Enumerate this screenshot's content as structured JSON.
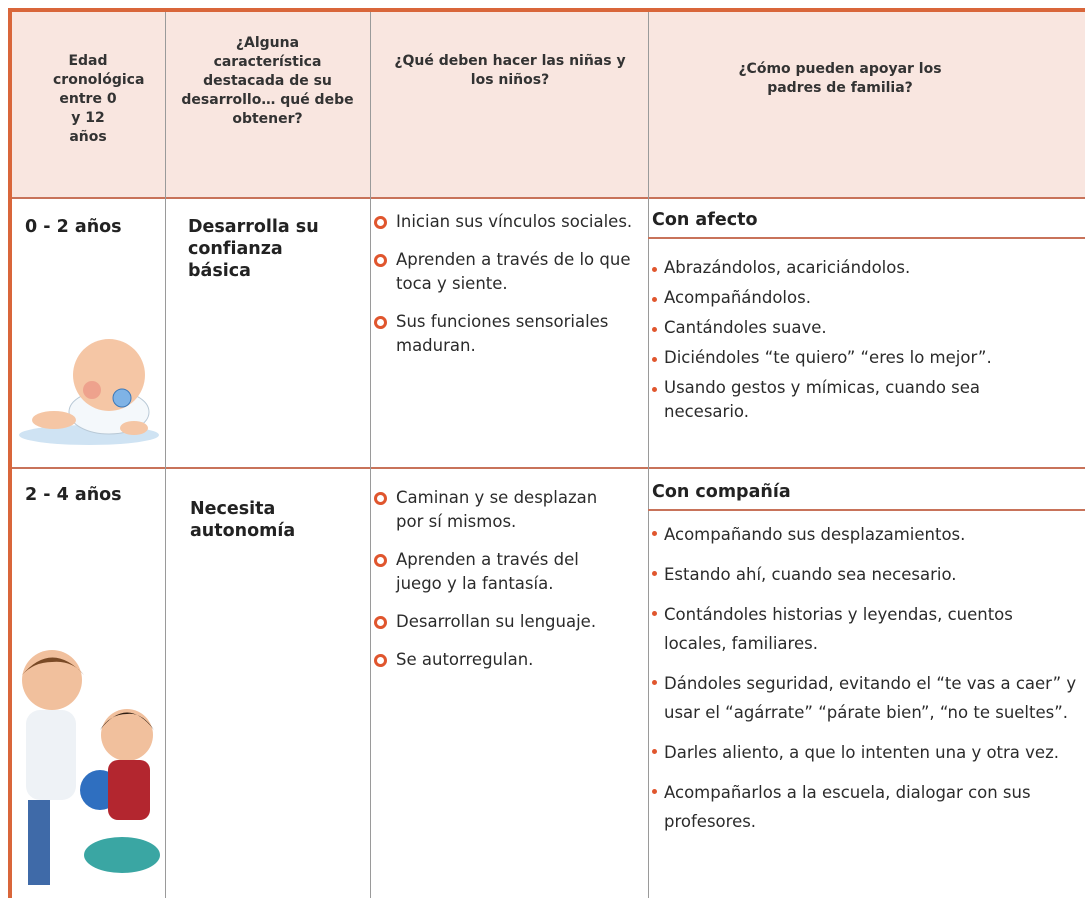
{
  "table": {
    "header": [
      "Edad cronológica entre 0 y 12 años",
      "¿Alguna característica destacada de su desarrollo… qué debe obtener?",
      "¿Qué deben hacer las niñas y los niños?",
      "¿Cómo pueden apoyar los padres de familia?"
    ],
    "rows": [
      {
        "age": "0 - 2 años",
        "characteristic": "Desarrolla su confianza básica",
        "children": [
          "Inician sus vínculos sociales.",
          "Aprenden a través de lo que toca y siente.",
          "Sus funciones sensoriales maduran."
        ],
        "parents_title": "Con afecto",
        "parents": [
          "Abrazándolos, acariciándolos.",
          "Acompañándolos.",
          "Cantándoles suave.",
          "Diciéndoles “te quiero” “eres lo mejor”.",
          "Usando gestos y mímicas, cuando sea necesario."
        ]
      },
      {
        "age": "2 - 4 años",
        "characteristic": "Necesita autonomía",
        "children": [
          "Caminan y se desplazan por sí mismos.",
          "Aprenden a través del juego y la fantasía.",
          "Desarrollan su lenguaje.",
          "Se autorregulan."
        ],
        "parents_title": "Con compañía",
        "parents": [
          "Acompañando sus desplazamientos.",
          "Estando ahí, cuando sea necesario.",
          "Contándoles historias y leyendas, cuentos locales, familiares.",
          "Dándoles seguridad, evitando el “te vas a caer” y usar el “agárrate” “párate bien”, “no te sueltes”.",
          "Darles aliento, a que lo intenten una y otra vez.",
          "Acompañarlos a la escuela, dialogar con sus profesores."
        ]
      }
    ]
  }
}
